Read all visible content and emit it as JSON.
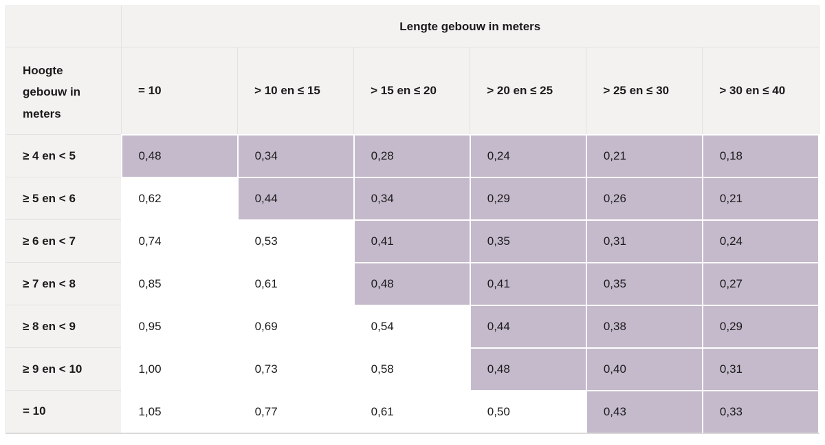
{
  "chart_data": {
    "type": "table",
    "group_header": "Lengte gebouw in meters",
    "corner_header": "Hoogte gebouw in meters",
    "columns": [
      "= 10",
      "> 10 en ≤ 15",
      "> 15 en ≤ 20",
      "> 20 en ≤ 25",
      "> 25 en ≤ 30",
      "> 30 en ≤ 40"
    ],
    "rows": [
      {
        "label": "≥ 4 en < 5",
        "values": [
          "0,48",
          "0,34",
          "0,28",
          "0,24",
          "0,21",
          "0,18"
        ],
        "highlight_from": 0
      },
      {
        "label": "≥ 5 en < 6",
        "values": [
          "0,62",
          "0,44",
          "0,34",
          "0,29",
          "0,26",
          "0,21"
        ],
        "highlight_from": 1
      },
      {
        "label": "≥ 6 en < 7",
        "values": [
          "0,74",
          "0,53",
          "0,41",
          "0,35",
          "0,31",
          "0,24"
        ],
        "highlight_from": 2
      },
      {
        "label": "≥ 7 en < 8",
        "values": [
          "0,85",
          "0,61",
          "0,48",
          "0,41",
          "0,35",
          "0,27"
        ],
        "highlight_from": 2
      },
      {
        "label": "≥ 8 en < 9",
        "values": [
          "0,95",
          "0,69",
          "0,54",
          "0,44",
          "0,38",
          "0,29"
        ],
        "highlight_from": 3
      },
      {
        "label": "≥ 9 en < 10",
        "values": [
          "1,00",
          "0,73",
          "0,58",
          "0,48",
          "0,40",
          "0,31"
        ],
        "highlight_from": 3
      },
      {
        "label": "= 10",
        "values": [
          "1,05",
          "0,77",
          "0,61",
          "0,50",
          "0,43",
          "0,33"
        ],
        "highlight_from": 4
      }
    ],
    "colors": {
      "highlight": "#c5bacc",
      "header_bg": "#f3f2f1",
      "header_line": "#e4e2e1",
      "text": "#1b1b1b",
      "bottom_line": "#dcdad9"
    },
    "layout": {
      "legend": "none",
      "grid": "cell-borders"
    }
  }
}
